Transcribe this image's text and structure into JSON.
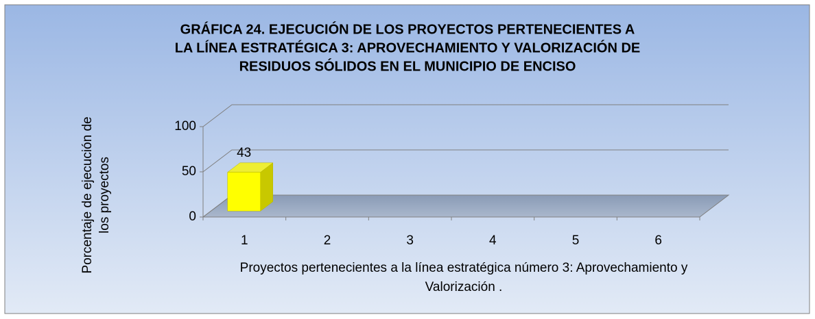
{
  "chart_data": {
    "type": "bar3d",
    "title": [
      "GRÁFICA 24. EJECUCIÓN DE LOS PROYECTOS PERTENECIENTES A",
      "LA LÍNEA ESTRATÉGICA 3: APROVECHAMIENTO Y VALORIZACIÓN DE",
      "RESIDUOS SÓLIDOS EN EL MUNICIPIO DE ENCISO"
    ],
    "y_label": [
      "Porcentaje de ejecución de",
      "los proyectos"
    ],
    "x_label": [
      "Proyectos  pertenecientes a la línea estratégica número 3: Aprovechamiento y",
      "Valorización ."
    ],
    "categories": [
      "1",
      "2",
      "3",
      "4",
      "5",
      "6"
    ],
    "values": [
      43,
      null,
      null,
      null,
      null,
      null
    ],
    "color": "#ffff00",
    "ylim": [
      0,
      100
    ],
    "yticks": [
      0,
      50,
      100
    ],
    "grid": true
  }
}
